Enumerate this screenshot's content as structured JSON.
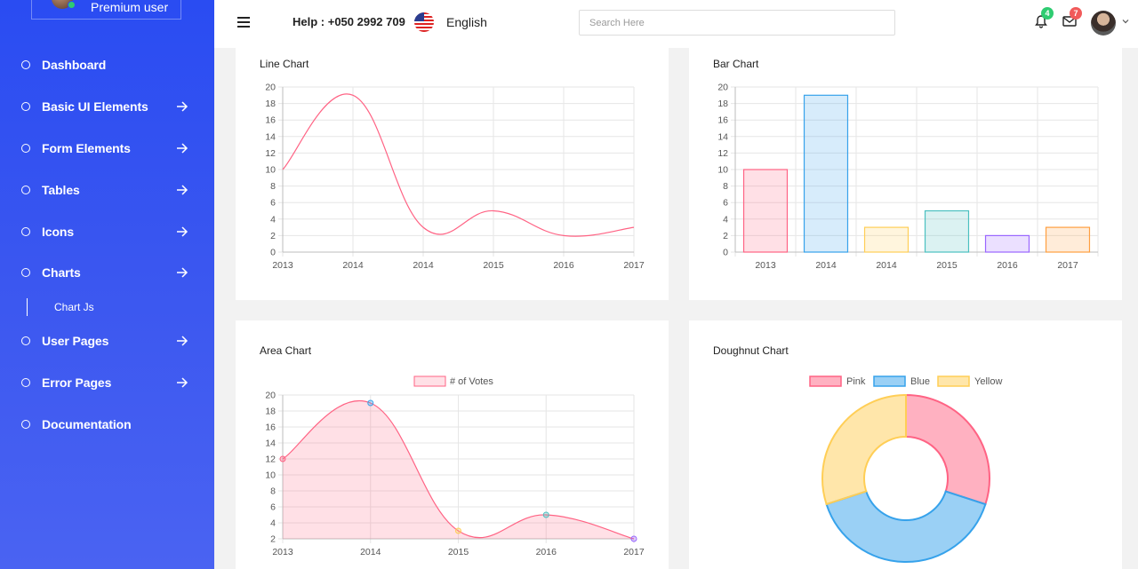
{
  "sidebar": {
    "profile_name": "Premium user",
    "items": [
      {
        "label": "Dashboard",
        "has_arrow": false
      },
      {
        "label": "Basic UI Elements",
        "has_arrow": true
      },
      {
        "label": "Form Elements",
        "has_arrow": true
      },
      {
        "label": "Tables",
        "has_arrow": true
      },
      {
        "label": "Icons",
        "has_arrow": true
      },
      {
        "label": "Charts",
        "has_arrow": true
      },
      {
        "label": "User Pages",
        "has_arrow": true
      },
      {
        "label": "Error Pages",
        "has_arrow": true
      },
      {
        "label": "Documentation",
        "has_arrow": false
      }
    ],
    "sub_item": "Chart Js"
  },
  "header": {
    "help": "Help : +050 2992 709",
    "language": "English",
    "search_placeholder": "Search Here",
    "notifications_count": "4",
    "messages_count": "7",
    "notifications_color": "#2ecc71",
    "messages_color": "#f15a5a"
  },
  "colors": {
    "pink": "#ff6384",
    "blue": "#36a2eb",
    "yellow": "#ffce56",
    "teal": "#4bc0c0",
    "purple": "#9966ff",
    "orange": "#ff9f40"
  },
  "chart_data": [
    {
      "type": "line",
      "title": "Line Chart",
      "categories": [
        "2013",
        "2014",
        "2014",
        "2015",
        "2016",
        "2017"
      ],
      "values": [
        10,
        19,
        3,
        5,
        2,
        3
      ],
      "ylim": [
        0,
        20
      ],
      "yticks": [
        "20",
        "18",
        "16",
        "14",
        "12",
        "10",
        "8",
        "6",
        "4",
        "2",
        "0"
      ]
    },
    {
      "type": "bar",
      "title": "Bar Chart",
      "categories": [
        "2013",
        "2014",
        "2014",
        "2015",
        "2016",
        "2017"
      ],
      "values": [
        10,
        19,
        3,
        5,
        2,
        3
      ],
      "ylim": [
        0,
        20
      ],
      "yticks": [
        "20",
        "18",
        "16",
        "14",
        "12",
        "10",
        "8",
        "6",
        "4",
        "2",
        "0"
      ]
    },
    {
      "type": "area",
      "title": "Area Chart",
      "legend": "# of Votes",
      "categories": [
        "2013",
        "2014",
        "2015",
        "2016",
        "2017"
      ],
      "values": [
        12,
        19,
        3,
        5,
        2
      ],
      "ylim": [
        2,
        20
      ],
      "yticks": [
        "20",
        "18",
        "16",
        "14",
        "12",
        "10",
        "8",
        "6",
        "4",
        "2"
      ]
    },
    {
      "type": "pie",
      "title": "Doughnut Chart",
      "labels": [
        "Pink",
        "Blue",
        "Yellow"
      ],
      "values": [
        30,
        40,
        30
      ]
    }
  ]
}
